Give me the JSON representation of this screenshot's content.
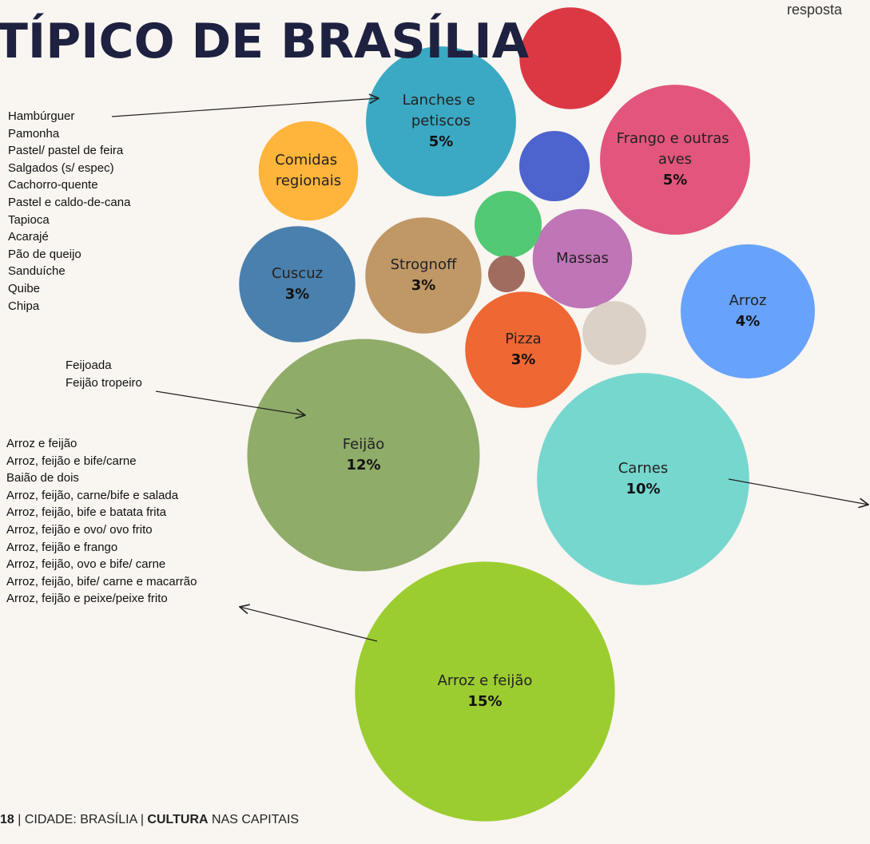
{
  "chart_data": {
    "type": "bubble",
    "title": "TÍPICO DE BRASÍLIA",
    "corner_note": "resposta",
    "categories": [
      "Arroz e feijão",
      "Feijão",
      "Carnes",
      "Lanches e petiscos",
      "Frango e outras aves",
      "Arroz",
      "Cuscuz",
      "Strognoff",
      "Pizza",
      "Comidas regionais",
      "Massas",
      null,
      null,
      null,
      null,
      null
    ],
    "values": [
      15,
      12,
      10,
      5,
      5,
      4,
      3,
      3,
      3,
      2.2,
      2.2,
      2.3,
      1.1,
      1,
      0.3,
      0.9
    ],
    "value_labels": [
      "15%",
      "12%",
      "10%",
      "5%",
      "5%",
      "4%",
      "3%",
      "3%",
      "3%",
      null,
      null,
      null,
      null,
      null,
      null,
      null
    ],
    "colors": [
      "#9ccd30",
      "#8fac69",
      "#76d7cf",
      "#3ba9c3",
      "#e2567c",
      "#67a3fc",
      "#4980ae",
      "#c09866",
      "#ef6733",
      "#ffb43b",
      "#bf75b6",
      "#db3844",
      "#4d63cd",
      "#52c973",
      "#a06c60",
      "#dcd1c6"
    ],
    "annotations": [
      {
        "items": [
          "Hambúrguer",
          "Pamonha",
          "Pastel/ pastel de feira",
          "Salgados (s/ espec)",
          "Cachorro-quente",
          "Pastel e caldo-de-cana",
          "Tapioca",
          "Acarajé",
          "Pão de queijo",
          "Sanduíche",
          "Quibe",
          "Chipa"
        ]
      },
      {
        "items": [
          "Feijoada",
          "Feijão tropeiro"
        ]
      },
      {
        "items": [
          "Arroz e feijão",
          "Arroz, feijão e bife/carne",
          "Baião de dois",
          "Arroz, feijão, carne/bife e salada",
          "Arroz, feijão, bife e batata frita",
          "Arroz, feijão e ovo/ ovo frito",
          "Arroz, feijão e frango",
          "Arroz, feijão, ovo e bife/ carne",
          "Arroz, feijão, bife/ carne e macarrão",
          "Arroz, feijão e peixe/peixe frito"
        ]
      }
    ],
    "footer": {
      "page": "18",
      "sep": "|",
      "city": "CIDADE: BRASÍLIA",
      "section": "CULTURA",
      "rest": "NAS CAPITAIS"
    }
  }
}
